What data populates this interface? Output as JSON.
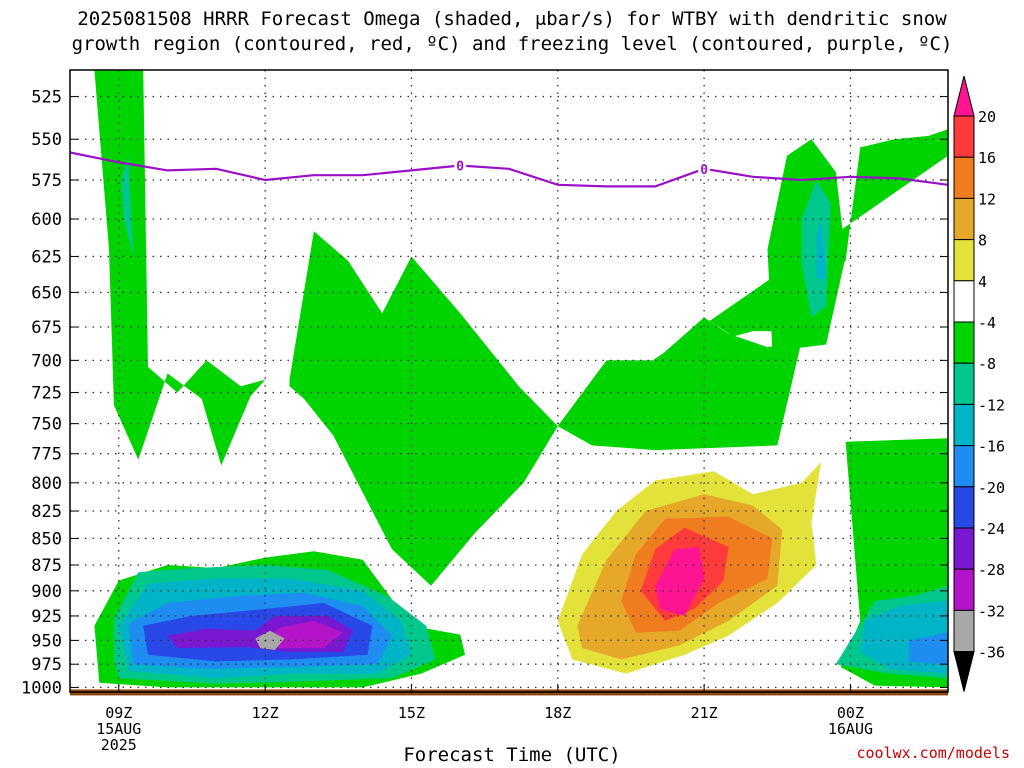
{
  "title_line1": "2025081508 HRRR Forecast Omega (shaded, μbar/s) for WTBY with dendritic snow",
  "title_line2": "growth region (contoured, red, ºC) and freezing level (contoured, purple, ºC)",
  "xlabel": "Forecast Time (UTC)",
  "credit": "coolwx.com/models",
  "chart_data": {
    "type": "heatmap",
    "title": "2025081508 HRRR Forecast Omega (shaded, μbar/s) for WTBY with dendritic snow growth region (contoured, red, ºC) and freezing level (contoured, purple, ºC)",
    "xlabel": "Forecast Time (UTC)",
    "ylabel": "",
    "x_ticks": [
      {
        "h": 9,
        "labels": [
          "09Z",
          "15AUG",
          "2025"
        ]
      },
      {
        "h": 12,
        "labels": [
          "12Z"
        ]
      },
      {
        "h": 15,
        "labels": [
          "15Z"
        ]
      },
      {
        "h": 18,
        "labels": [
          "18Z"
        ]
      },
      {
        "h": 21,
        "labels": [
          "21Z"
        ]
      },
      {
        "h": 24,
        "labels": [
          "00Z",
          "16AUG"
        ]
      }
    ],
    "xlim": [
      8.0,
      26.0
    ],
    "y_ticks": [
      525,
      550,
      575,
      600,
      625,
      650,
      675,
      700,
      725,
      750,
      775,
      800,
      825,
      850,
      875,
      900,
      925,
      950,
      975,
      1000
    ],
    "ylim": [
      510,
      1005
    ],
    "y_scale": "log-pressure (inverted)",
    "grid": true,
    "colorbar": {
      "labels": [
        "20",
        "16",
        "12",
        "8",
        "4",
        "-4",
        "-8",
        "-12",
        "-16",
        "-20",
        "-24",
        "-28",
        "-32",
        "-36"
      ],
      "colors": [
        "#ff3b3b",
        "#f07c20",
        "#e6a828",
        "#e2e23a",
        "#ffffff",
        "#00d400",
        "#00c88c",
        "#00b4c8",
        "#1e8cf0",
        "#2848e8",
        "#7818d0",
        "#b414c8",
        "#a8a8a8"
      ],
      "top_arrow_color": "#ff1493",
      "bottom_arrow_color": "#000000"
    },
    "freezing_level": {
      "label": "0",
      "color": "#9a10c8",
      "points": [
        [
          8,
          558
        ],
        [
          9,
          564
        ],
        [
          10,
          569
        ],
        [
          11,
          568
        ],
        [
          12,
          575
        ],
        [
          13,
          572
        ],
        [
          14,
          572
        ],
        [
          15,
          569
        ],
        [
          16,
          566
        ],
        [
          17,
          568
        ],
        [
          18,
          578
        ],
        [
          19,
          579
        ],
        [
          20,
          579
        ],
        [
          21,
          568
        ],
        [
          22,
          573
        ],
        [
          23,
          575
        ],
        [
          24,
          573
        ],
        [
          25,
          574
        ],
        [
          26,
          578
        ]
      ],
      "label_hours": [
        16,
        21
      ]
    },
    "omega_regions": [
      {
        "value": "-4 to -8",
        "color": "#00d400",
        "pts": [
          [
            8.5,
            510
          ],
          [
            9.5,
            510
          ],
          [
            9.6,
            705
          ],
          [
            10.2,
            725
          ],
          [
            10.8,
            700
          ],
          [
            11.5,
            720
          ],
          [
            12,
            715
          ],
          [
            11.7,
            728
          ],
          [
            11.1,
            785
          ],
          [
            10.7,
            730
          ],
          [
            10.0,
            710
          ],
          [
            9.4,
            780
          ],
          [
            8.9,
            735
          ],
          [
            8.8,
            620
          ]
        ]
      },
      {
        "value": "-4 to -8",
        "color": "#00d400",
        "pts": [
          [
            12.5,
            715
          ],
          [
            13,
            608
          ],
          [
            13.7,
            628
          ],
          [
            14.4,
            665
          ],
          [
            15,
            625
          ],
          [
            16,
            665
          ],
          [
            17.2,
            720
          ],
          [
            18.0,
            752
          ],
          [
            17.3,
            800
          ],
          [
            16.3,
            845
          ],
          [
            15.4,
            895
          ],
          [
            14.6,
            860
          ],
          [
            13.4,
            760
          ],
          [
            12.8,
            730
          ],
          [
            12.5,
            720
          ]
        ]
      },
      {
        "value": "-4 to -8",
        "color": "#00d400",
        "pts": [
          [
            18.0,
            752
          ],
          [
            19,
            700
          ],
          [
            20,
            700
          ],
          [
            21,
            668
          ],
          [
            21.6,
            682
          ],
          [
            22,
            678
          ],
          [
            22.8,
            678
          ],
          [
            23.1,
            655
          ],
          [
            23.9,
            628
          ],
          [
            24.2,
            555
          ],
          [
            24.9,
            550
          ],
          [
            25.6,
            548
          ],
          [
            26,
            544
          ],
          [
            26,
            560
          ]
        ]
      },
      {
        "value": "-4 to -8",
        "color": "#00d400",
        "pts": [
          [
            18.0,
            752
          ],
          [
            19,
            700
          ],
          [
            20,
            700
          ],
          [
            21,
            668
          ],
          [
            21.5,
            680
          ],
          [
            22.3,
            690
          ],
          [
            23.0,
            685
          ],
          [
            22.5,
            768
          ],
          [
            20,
            772
          ],
          [
            18.7,
            768
          ]
        ]
      },
      {
        "value": "-4 to -8",
        "color": "#00d400",
        "pts": [
          [
            22.4,
            693
          ],
          [
            22.3,
            620
          ],
          [
            22.7,
            560
          ],
          [
            23.2,
            550
          ],
          [
            23.7,
            570
          ],
          [
            23.9,
            625
          ],
          [
            23.5,
            688
          ]
        ]
      },
      {
        "value": "-4 to -8",
        "color": "#00d400",
        "pts": [
          [
            23.9,
            765
          ],
          [
            26,
            762
          ],
          [
            26,
            1000
          ],
          [
            24.5,
            998
          ],
          [
            23.8,
            978
          ],
          [
            24.2,
            930
          ]
        ]
      },
      {
        "value": "-4 to -8",
        "color": "#00d400",
        "pts": [
          [
            8.5,
            935
          ],
          [
            9,
            890
          ],
          [
            10,
            875
          ],
          [
            11,
            878
          ],
          [
            12,
            868
          ],
          [
            13,
            862
          ],
          [
            14,
            870
          ],
          [
            15,
            935
          ],
          [
            16,
            944
          ],
          [
            16.1,
            965
          ],
          [
            15.2,
            985
          ],
          [
            14,
            1000
          ],
          [
            12,
            1000
          ],
          [
            10,
            1000
          ],
          [
            8.6,
            995
          ]
        ]
      },
      {
        "value": "-8 to -12",
        "color": "#00c88c",
        "pts": [
          [
            9.2,
            560
          ],
          [
            9.3,
            625
          ],
          [
            9.1,
            600
          ],
          [
            9.05,
            575
          ]
        ]
      },
      {
        "value": "-8 to -12",
        "color": "#00c88c",
        "pts": [
          [
            23.0,
            600
          ],
          [
            23.3,
            575
          ],
          [
            23.6,
            590
          ],
          [
            23.5,
            660
          ],
          [
            23.2,
            668
          ],
          [
            23.0,
            630
          ]
        ]
      },
      {
        "value": "-8 to -12",
        "color": "#00c88c",
        "pts": [
          [
            8.9,
            928
          ],
          [
            9.4,
            882
          ],
          [
            10.5,
            878
          ],
          [
            12,
            875
          ],
          [
            13.3,
            880
          ],
          [
            14.5,
            905
          ],
          [
            15.3,
            935
          ],
          [
            15.5,
            970
          ],
          [
            14.6,
            990
          ],
          [
            13,
            993
          ],
          [
            11,
            996
          ],
          [
            9,
            990
          ],
          [
            8.9,
            970
          ]
        ]
      },
      {
        "value": "-8 to -12",
        "color": "#00c88c",
        "pts": [
          [
            24,
            950
          ],
          [
            24.5,
            910
          ],
          [
            25.3,
            905
          ],
          [
            26,
            895
          ],
          [
            26,
            990
          ],
          [
            24.8,
            985
          ],
          [
            23.7,
            975
          ]
        ]
      },
      {
        "value": "-12 to -16",
        "color": "#00b4c8",
        "pts": [
          [
            9.0,
            935
          ],
          [
            9.6,
            893
          ],
          [
            11,
            888
          ],
          [
            12.5,
            888
          ],
          [
            14,
            900
          ],
          [
            14.8,
            930
          ],
          [
            15,
            965
          ],
          [
            14.3,
            985
          ],
          [
            12.5,
            985
          ],
          [
            11,
            990
          ],
          [
            9.2,
            982
          ]
        ]
      },
      {
        "value": "-12 to -16",
        "color": "#00b4c8",
        "pts": [
          [
            23.3,
            612
          ],
          [
            23.4,
            600
          ],
          [
            23.5,
            640
          ],
          [
            23.3,
            640
          ]
        ]
      },
      {
        "value": "-12 to -16",
        "color": "#00b4c8",
        "pts": [
          [
            24.3,
            930
          ],
          [
            25,
            915
          ],
          [
            26,
            910
          ],
          [
            26,
            985
          ],
          [
            24.8,
            980
          ],
          [
            24.2,
            962
          ]
        ]
      },
      {
        "value": "-16 to -20",
        "color": "#1e8cf0",
        "pts": [
          [
            9.2,
            933
          ],
          [
            10,
            912
          ],
          [
            11.5,
            905
          ],
          [
            12.8,
            902
          ],
          [
            14,
            915
          ],
          [
            14.6,
            945
          ],
          [
            14.3,
            975
          ],
          [
            12.5,
            978
          ],
          [
            10.8,
            980
          ],
          [
            9.3,
            975
          ]
        ]
      },
      {
        "value": "-16 to -20",
        "color": "#1e8cf0",
        "pts": [
          [
            25.2,
            950
          ],
          [
            26,
            942
          ],
          [
            26,
            975
          ],
          [
            25.2,
            972
          ]
        ]
      },
      {
        "value": "-20 to -24",
        "color": "#2848e8",
        "pts": [
          [
            9.5,
            935
          ],
          [
            10.5,
            925
          ],
          [
            12,
            918
          ],
          [
            13.2,
            912
          ],
          [
            14.2,
            935
          ],
          [
            14.1,
            965
          ],
          [
            12.5,
            970
          ],
          [
            11,
            972
          ],
          [
            9.6,
            965
          ]
        ]
      },
      {
        "value": "-24 to -28",
        "color": "#7818d0",
        "pts": [
          [
            10,
            945
          ],
          [
            10.8,
            938
          ],
          [
            11.8,
            940
          ],
          [
            12.2,
            925
          ],
          [
            13.3,
            925
          ],
          [
            13.8,
            940
          ],
          [
            13.6,
            962
          ],
          [
            12.5,
            962
          ],
          [
            11.6,
            957
          ],
          [
            10.2,
            958
          ]
        ]
      },
      {
        "value": "-28 to -32",
        "color": "#b414c8",
        "pts": [
          [
            12.3,
            937
          ],
          [
            13.0,
            930
          ],
          [
            13.6,
            942
          ],
          [
            13.2,
            958
          ],
          [
            12.3,
            958
          ],
          [
            12.0,
            948
          ]
        ]
      },
      {
        "value": "-32 to -36",
        "color": "#a8a8a8",
        "pts": [
          [
            11.8,
            948
          ],
          [
            12.1,
            940
          ],
          [
            12.4,
            948
          ],
          [
            12.2,
            960
          ],
          [
            11.9,
            958
          ]
        ]
      },
      {
        "value": "4 to 8",
        "color": "#e2e23a",
        "pts": [
          [
            18,
            930
          ],
          [
            18.5,
            865
          ],
          [
            19.2,
            825
          ],
          [
            20,
            798
          ],
          [
            21.2,
            790
          ],
          [
            22,
            810
          ],
          [
            23,
            800
          ],
          [
            23.4,
            782
          ],
          [
            23.2,
            835
          ],
          [
            23.3,
            875
          ],
          [
            22.5,
            912
          ],
          [
            21.5,
            945
          ],
          [
            20.6,
            965
          ],
          [
            19.4,
            985
          ],
          [
            18.3,
            970
          ]
        ]
      },
      {
        "value": "8 to 12",
        "color": "#e6a828",
        "pts": [
          [
            18.4,
            935
          ],
          [
            19,
            870
          ],
          [
            19.8,
            825
          ],
          [
            21,
            810
          ],
          [
            22,
            820
          ],
          [
            22.6,
            842
          ],
          [
            22.5,
            895
          ],
          [
            21.5,
            930
          ],
          [
            20.5,
            955
          ],
          [
            19.3,
            970
          ],
          [
            18.5,
            958
          ]
        ]
      },
      {
        "value": "12 to 16",
        "color": "#f07c20",
        "pts": [
          [
            19.3,
            910
          ],
          [
            19.6,
            865
          ],
          [
            20.2,
            832
          ],
          [
            21.5,
            830
          ],
          [
            22.4,
            850
          ],
          [
            22.3,
            888
          ],
          [
            21.3,
            912
          ],
          [
            20.5,
            940
          ],
          [
            19.6,
            942
          ]
        ]
      },
      {
        "value": "16 to 20",
        "color": "#ff3b3b",
        "pts": [
          [
            19.7,
            900
          ],
          [
            20.0,
            860
          ],
          [
            20.6,
            840
          ],
          [
            21.5,
            858
          ],
          [
            21.4,
            890
          ],
          [
            20.8,
            918
          ],
          [
            20.2,
            930
          ]
        ]
      },
      {
        "value": ">20",
        "color": "#ff1493",
        "pts": [
          [
            20.0,
            895
          ],
          [
            20.4,
            860
          ],
          [
            20.9,
            858
          ],
          [
            21.0,
            888
          ],
          [
            20.6,
            925
          ],
          [
            20.1,
            918
          ]
        ]
      }
    ],
    "surface_color": "#8b4513"
  }
}
